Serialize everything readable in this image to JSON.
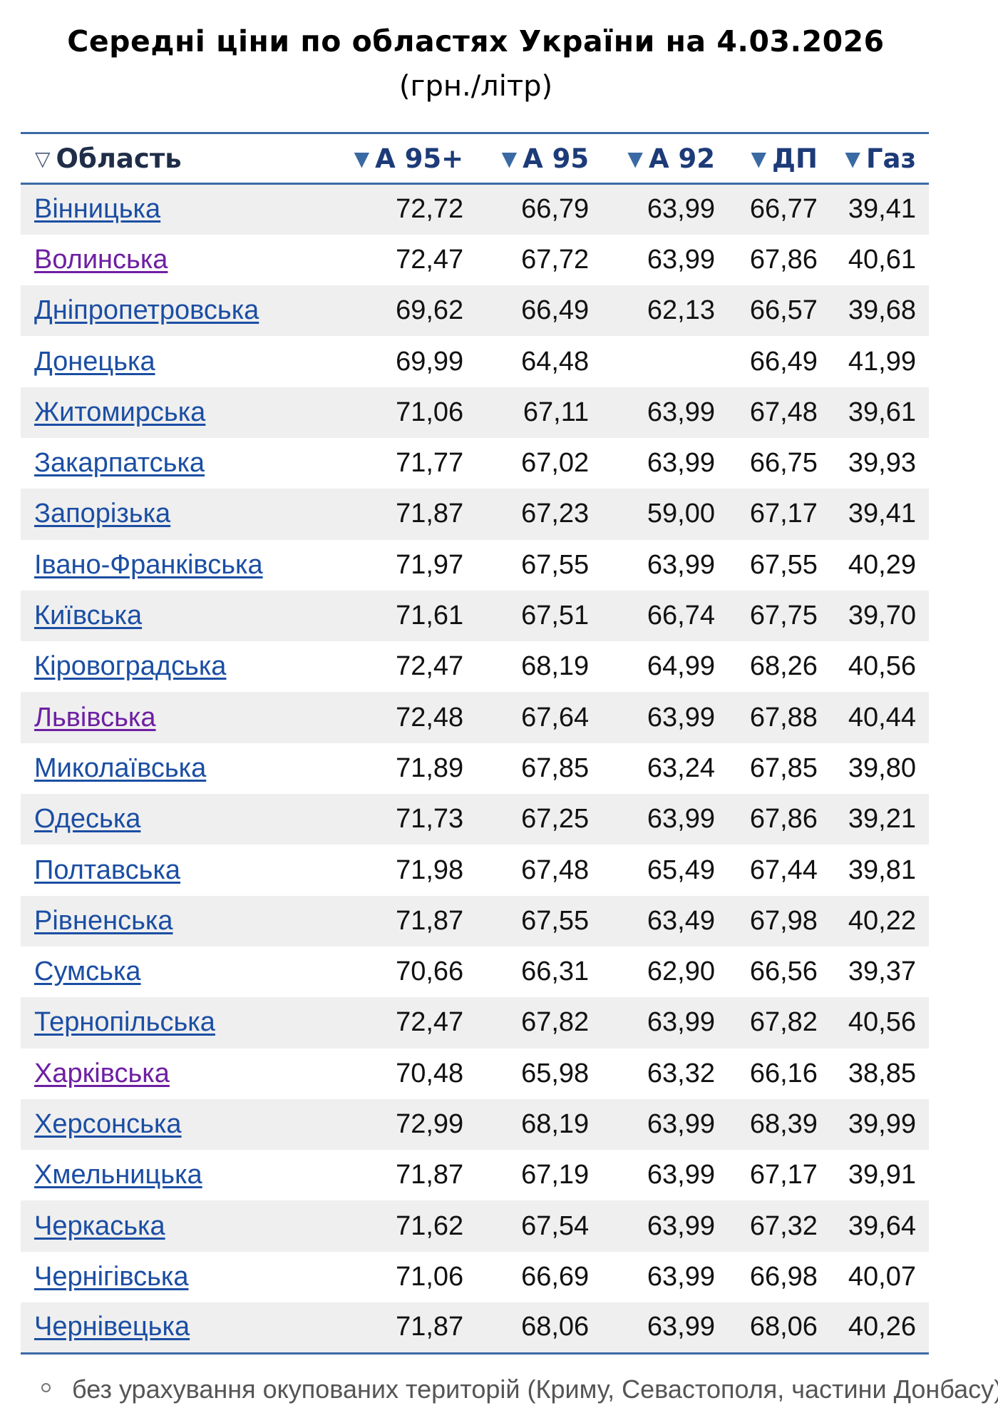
{
  "title": "Середні ціни по областях України на 4.03.2026",
  "subtitle": "(грн./літр)",
  "table": {
    "columns": [
      "Область",
      "А 95+",
      "А 95",
      "А 92",
      "ДП",
      "Газ"
    ],
    "header_icons": [
      "sort-triangle-outline-icon",
      "sort-triangle-filled-icon"
    ],
    "rows": [
      {
        "region": "Вінницька",
        "visited": false,
        "values": [
          "72,72",
          "66,79",
          "63,99",
          "66,77",
          "39,41"
        ]
      },
      {
        "region": "Волинська",
        "visited": true,
        "values": [
          "72,47",
          "67,72",
          "63,99",
          "67,86",
          "40,61"
        ]
      },
      {
        "region": "Дніпропетровська",
        "visited": false,
        "values": [
          "69,62",
          "66,49",
          "62,13",
          "66,57",
          "39,68"
        ]
      },
      {
        "region": "Донецька",
        "visited": false,
        "values": [
          "69,99",
          "64,48",
          "",
          "66,49",
          "41,99"
        ]
      },
      {
        "region": "Житомирська",
        "visited": false,
        "values": [
          "71,06",
          "67,11",
          "63,99",
          "67,48",
          "39,61"
        ]
      },
      {
        "region": "Закарпатська",
        "visited": false,
        "values": [
          "71,77",
          "67,02",
          "63,99",
          "66,75",
          "39,93"
        ]
      },
      {
        "region": "Запорізька",
        "visited": false,
        "values": [
          "71,87",
          "67,23",
          "59,00",
          "67,17",
          "39,41"
        ]
      },
      {
        "region": "Івано-Франківська",
        "visited": false,
        "values": [
          "71,97",
          "67,55",
          "63,99",
          "67,55",
          "40,29"
        ]
      },
      {
        "region": "Київська",
        "visited": false,
        "values": [
          "71,61",
          "67,51",
          "66,74",
          "67,75",
          "39,70"
        ]
      },
      {
        "region": "Кіровоградська",
        "visited": false,
        "values": [
          "72,47",
          "68,19",
          "64,99",
          "68,26",
          "40,56"
        ]
      },
      {
        "region": "Львівська",
        "visited": true,
        "values": [
          "72,48",
          "67,64",
          "63,99",
          "67,88",
          "40,44"
        ]
      },
      {
        "region": "Миколаївська",
        "visited": false,
        "values": [
          "71,89",
          "67,85",
          "63,24",
          "67,85",
          "39,80"
        ]
      },
      {
        "region": "Одеська",
        "visited": false,
        "values": [
          "71,73",
          "67,25",
          "63,99",
          "67,86",
          "39,21"
        ]
      },
      {
        "region": "Полтавська",
        "visited": false,
        "values": [
          "71,98",
          "67,48",
          "65,49",
          "67,44",
          "39,81"
        ]
      },
      {
        "region": "Рівненська",
        "visited": false,
        "values": [
          "71,87",
          "67,55",
          "63,49",
          "67,98",
          "40,22"
        ]
      },
      {
        "region": "Сумська",
        "visited": false,
        "values": [
          "70,66",
          "66,31",
          "62,90",
          "66,56",
          "39,37"
        ]
      },
      {
        "region": "Тернопільська",
        "visited": false,
        "values": [
          "72,47",
          "67,82",
          "63,99",
          "67,82",
          "40,56"
        ]
      },
      {
        "region": "Харківська",
        "visited": true,
        "values": [
          "70,48",
          "65,98",
          "63,32",
          "66,16",
          "38,85"
        ]
      },
      {
        "region": "Херсонська",
        "visited": false,
        "values": [
          "72,99",
          "68,19",
          "63,99",
          "68,39",
          "39,99"
        ]
      },
      {
        "region": "Хмельницька",
        "visited": false,
        "values": [
          "71,87",
          "67,19",
          "63,99",
          "67,17",
          "39,91"
        ]
      },
      {
        "region": "Черкаська",
        "visited": false,
        "values": [
          "71,62",
          "67,54",
          "63,99",
          "67,32",
          "39,64"
        ]
      },
      {
        "region": "Чернігівська",
        "visited": false,
        "values": [
          "71,06",
          "66,69",
          "63,99",
          "66,98",
          "40,07"
        ]
      },
      {
        "region": "Чернівецька",
        "visited": false,
        "values": [
          "71,87",
          "68,06",
          "63,99",
          "68,06",
          "40,26"
        ]
      }
    ]
  },
  "footnote": "без урахування окупованих територій (Криму, Севастополя, частини Донбасу)",
  "colors": {
    "accent_border": "#3b6aa5",
    "link": "#1b4ea3",
    "link_visited": "#6e1fa3",
    "row_alt": "#efefef"
  }
}
